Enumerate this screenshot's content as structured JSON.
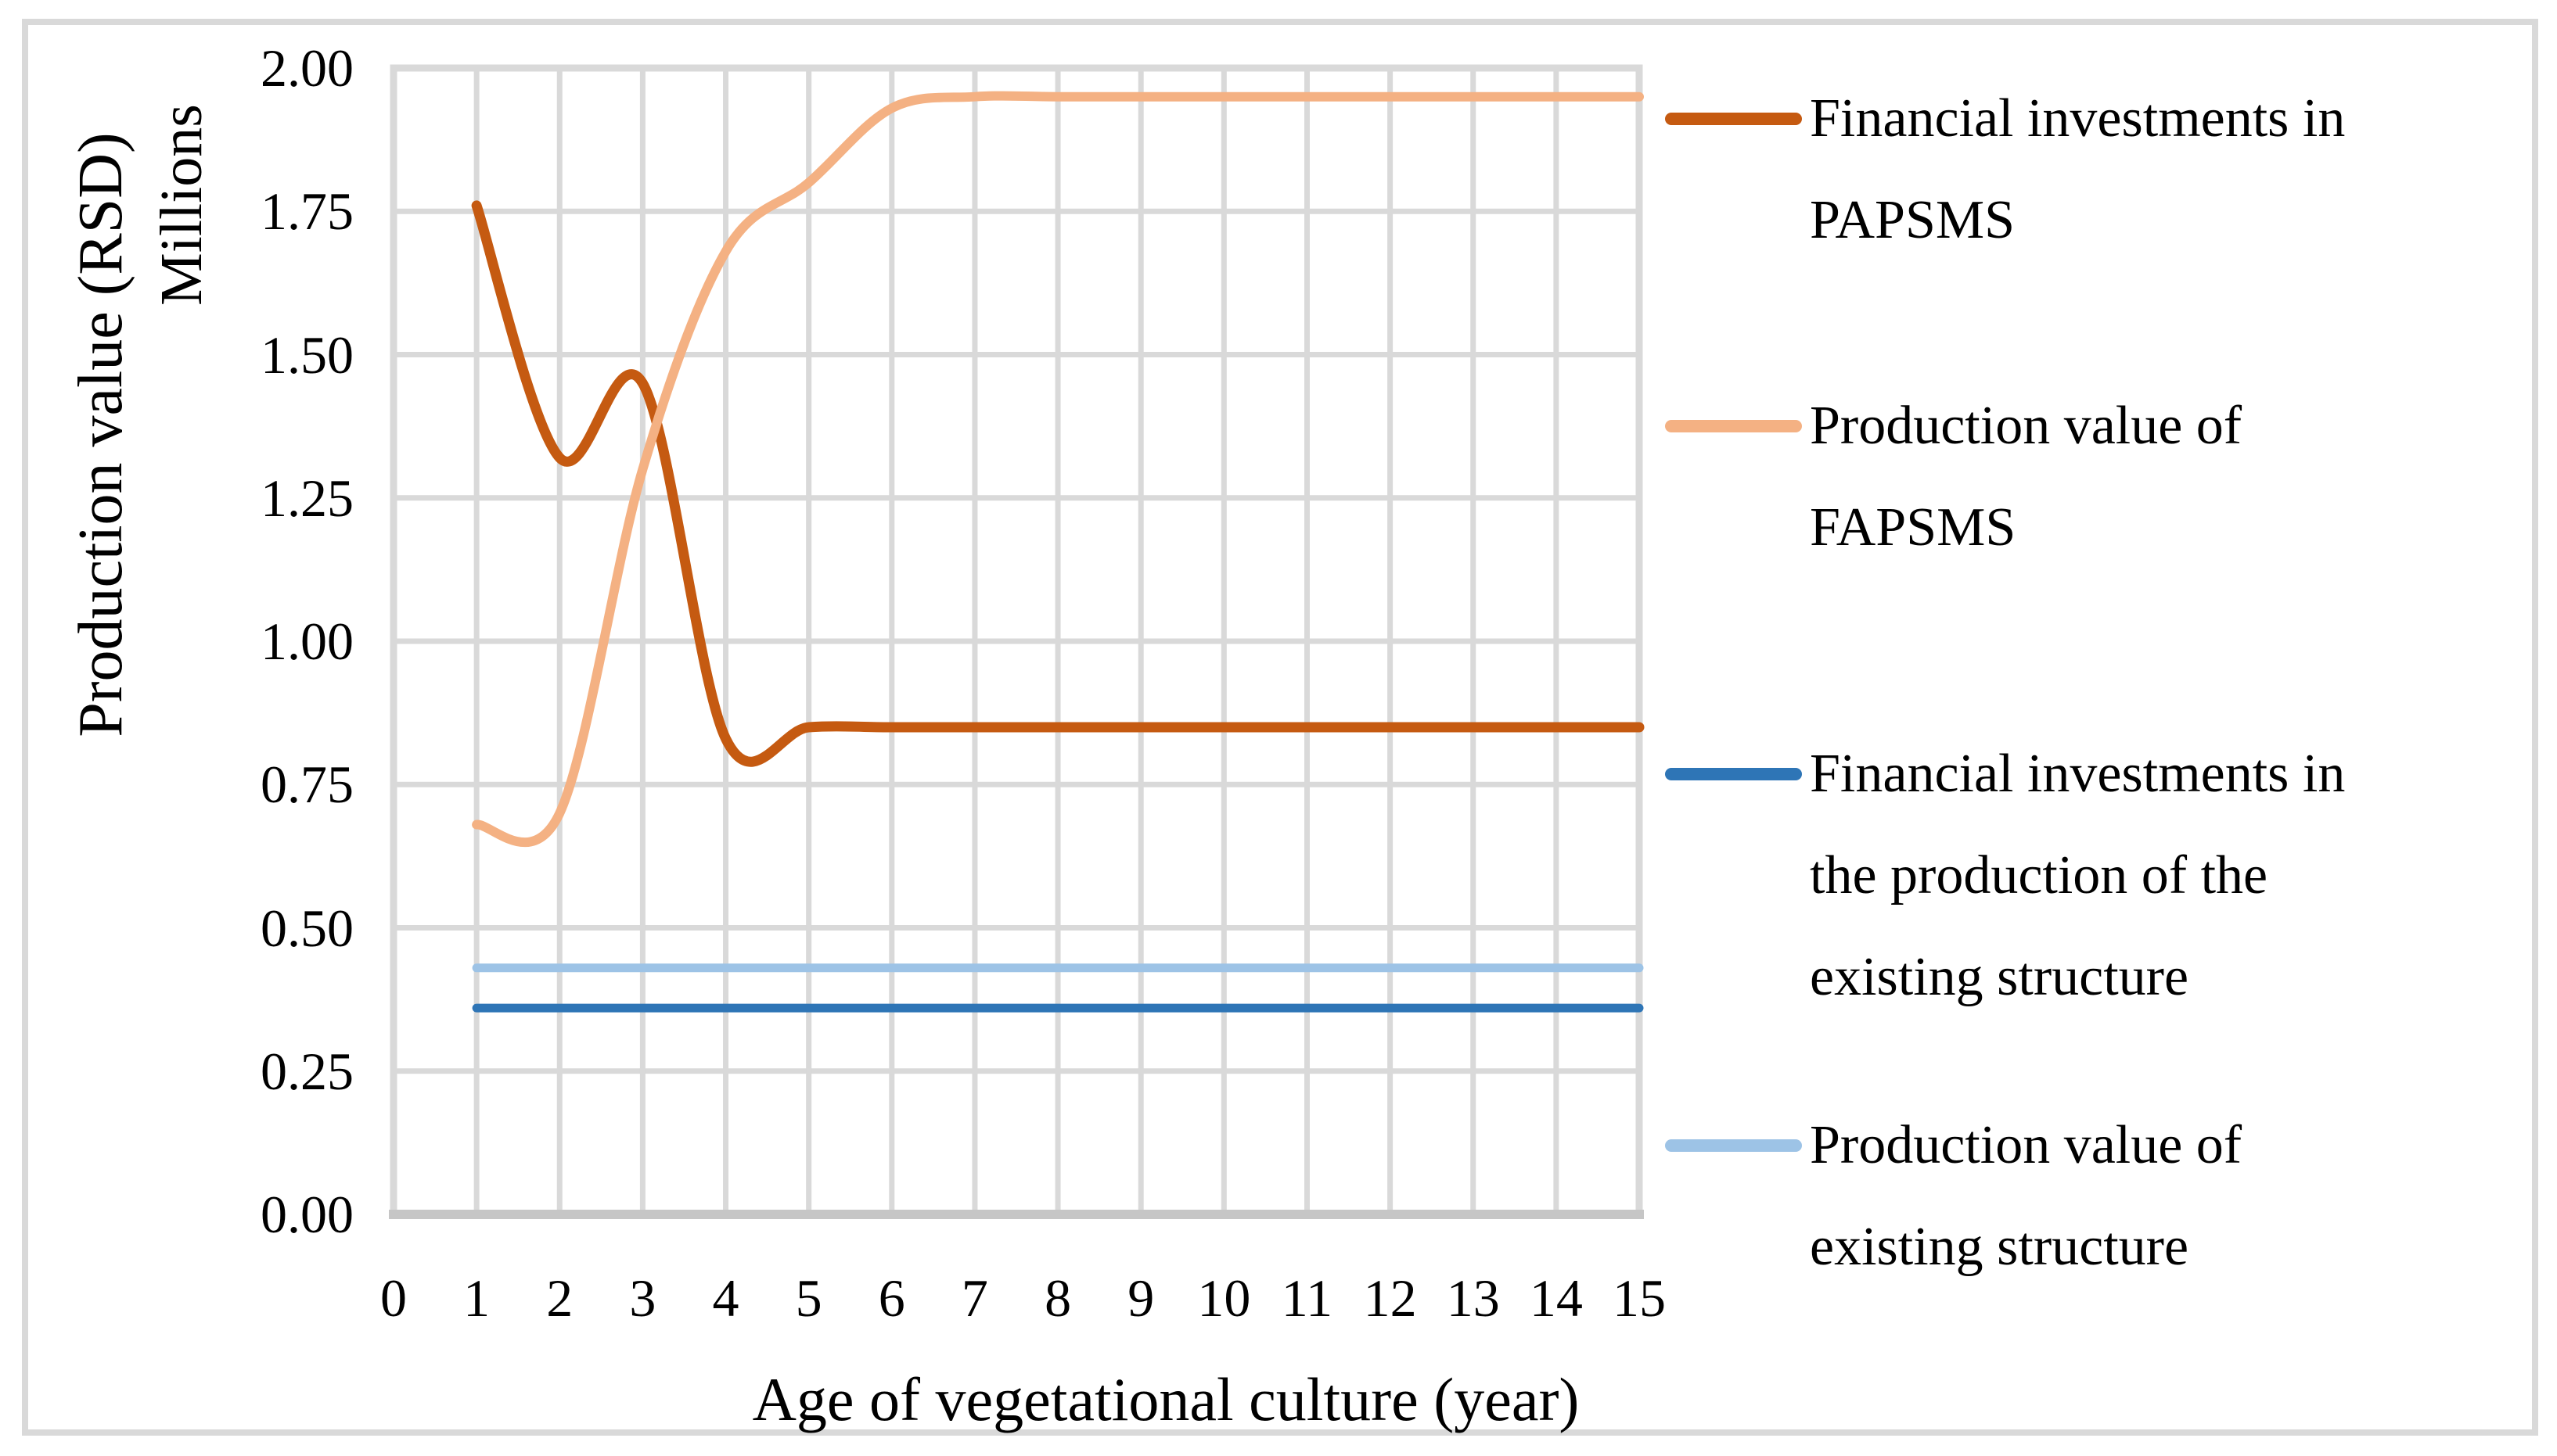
{
  "figure": {
    "background": "#FFFFFF",
    "border_color": "#D9D9D9",
    "text_color": "#000000"
  },
  "chart_data": {
    "type": "line",
    "title": "",
    "xlabel": "Age of vegetational culture (year)",
    "ylabel": "Production value (RSD)",
    "y_units_label": "Millions",
    "xlim": [
      0,
      15
    ],
    "ylim": [
      0,
      2
    ],
    "grid": true,
    "gridline_color": "#D9D9D9",
    "axis_line_color": "#C6C6C6",
    "plot_border_color": "#D9D9D9",
    "legend_position": "right",
    "x_ticks": [
      "0",
      "1",
      "2",
      "3",
      "4",
      "5",
      "6",
      "7",
      "8",
      "9",
      "10",
      "11",
      "12",
      "13",
      "14",
      "15"
    ],
    "y_ticks": [
      "0.00",
      "0.25",
      "0.50",
      "0.75",
      "1.00",
      "1.25",
      "1.50",
      "1.75",
      "2.00"
    ],
    "x": [
      1,
      2,
      3,
      4,
      5,
      6,
      7,
      8,
      9,
      10,
      11,
      12,
      13,
      14,
      15
    ],
    "series": [
      {
        "id": "fin-papsms",
        "name": "Financial investments in PAPSMS",
        "color": "#C55A11",
        "stroke_width": 13,
        "smooth": true,
        "values": [
          1.76,
          1.32,
          1.45,
          0.83,
          0.85,
          0.85,
          0.85,
          0.85,
          0.85,
          0.85,
          0.85,
          0.85,
          0.85,
          0.85,
          0.85
        ]
      },
      {
        "id": "prod-fapsms",
        "name": "Production value of FAPSMS",
        "color": "#F4B183",
        "stroke_width": 12,
        "smooth": true,
        "values": [
          0.68,
          0.7,
          1.3,
          1.68,
          1.8,
          1.93,
          1.95,
          1.95,
          1.95,
          1.95,
          1.95,
          1.95,
          1.95,
          1.95,
          1.95
        ]
      },
      {
        "id": "fin-existing",
        "name": "Financial investments in the production of the existing structure",
        "color": "#2E75B6",
        "stroke_width": 11,
        "smooth": false,
        "values": [
          0.36,
          0.36,
          0.36,
          0.36,
          0.36,
          0.36,
          0.36,
          0.36,
          0.36,
          0.36,
          0.36,
          0.36,
          0.36,
          0.36,
          0.36
        ]
      },
      {
        "id": "prod-existing",
        "name": "Production value of existing structure",
        "color": "#9DC3E6",
        "stroke_width": 11,
        "smooth": false,
        "values": [
          0.43,
          0.43,
          0.43,
          0.43,
          0.43,
          0.43,
          0.43,
          0.43,
          0.43,
          0.43,
          0.43,
          0.43,
          0.43,
          0.43,
          0.43
        ]
      }
    ],
    "legend": [
      {
        "color": "#C55A11",
        "lines": [
          "Financial investments in",
          "PAPSMS"
        ]
      },
      {
        "color": "#F4B183",
        "lines": [
          "Production value of",
          "FAPSMS"
        ]
      },
      {
        "color": "#2E75B6",
        "lines": [
          "Financial investments in",
          "the production of the",
          "existing structure"
        ]
      },
      {
        "color": "#9DC3E6",
        "lines": [
          "Production value of",
          "existing structure"
        ]
      }
    ]
  }
}
